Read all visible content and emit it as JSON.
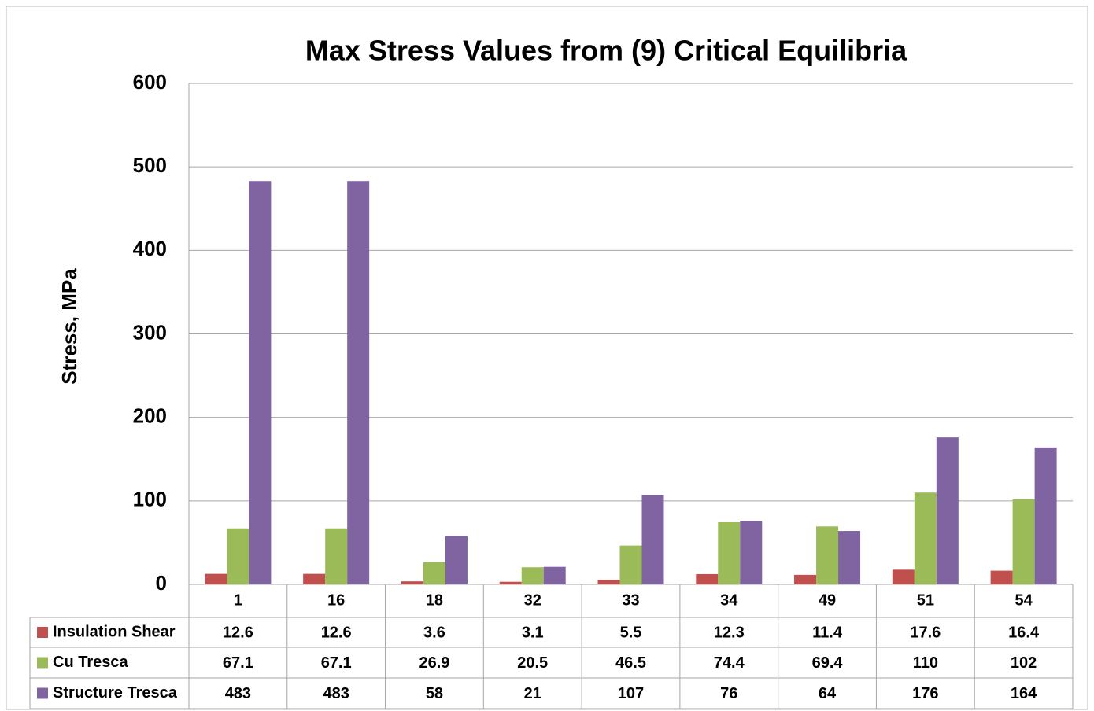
{
  "chart_data": {
    "type": "bar",
    "title": "Max Stress Values from (9) Critical Equilibria",
    "y_label": "Stress, MPa",
    "categories": [
      "1",
      "16",
      "18",
      "32",
      "33",
      "34",
      "49",
      "51",
      "54"
    ],
    "series": [
      {
        "name": "Insulation Shear",
        "color": "#c0504d",
        "values": [
          12.6,
          12.6,
          3.6,
          3.1,
          5.5,
          12.3,
          11.4,
          17.6,
          16.4
        ]
      },
      {
        "name": "Cu Tresca",
        "color": "#9bbb59",
        "values": [
          67.1,
          67.1,
          26.9,
          20.5,
          46.5,
          74.4,
          69.4,
          110,
          102
        ]
      },
      {
        "name": "Structure Tresca",
        "color": "#8064a2",
        "values": [
          483,
          483,
          58,
          21,
          107,
          76,
          64,
          176,
          164
        ]
      }
    ],
    "ylim": [
      0,
      600
    ],
    "yticks": [
      0,
      100,
      200,
      300,
      400,
      500,
      600
    ],
    "grid": true,
    "legend": "table"
  }
}
